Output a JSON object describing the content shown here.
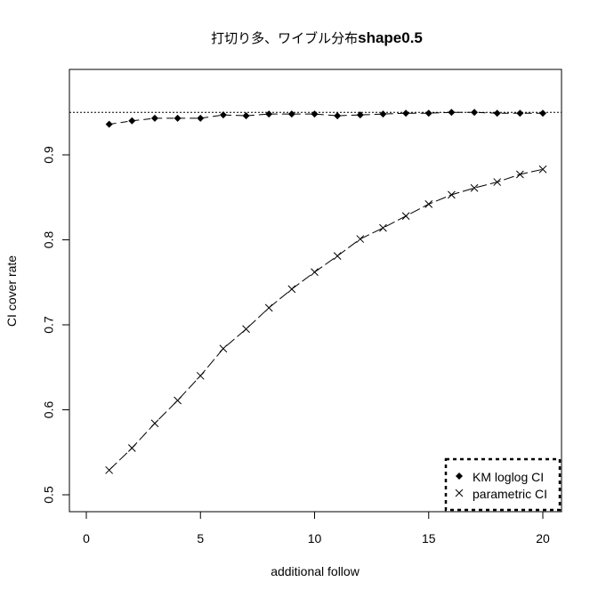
{
  "chart_data": {
    "type": "line",
    "title": "打切り多、ワイブル分布shape0.5",
    "title_parts": {
      "jp": "打切り多、ワイブル分布",
      "en": "shape0.5"
    },
    "xlabel": "additional follow",
    "ylabel": "CI cover rate",
    "xlim": [
      0,
      20
    ],
    "ylim": [
      0.48,
      0.99
    ],
    "x_ticks": [
      0,
      5,
      10,
      15,
      20
    ],
    "y_ticks": [
      0.5,
      0.6,
      0.7,
      0.8,
      0.9
    ],
    "x_tick_labels": [
      "0",
      "5",
      "10",
      "15",
      "20"
    ],
    "y_tick_labels": [
      "0.5",
      "0.6",
      "0.7",
      "0.8",
      "0.9"
    ],
    "grid": false,
    "reference_line": {
      "y": 0.95,
      "style": "dotted"
    },
    "legend_position": "bottomright",
    "x": [
      1,
      2,
      3,
      4,
      5,
      6,
      7,
      8,
      9,
      10,
      11,
      12,
      13,
      14,
      15,
      16,
      17,
      18,
      19,
      20
    ],
    "series": [
      {
        "name": "KM loglog CI",
        "marker": "diamond-filled",
        "line": "dashed",
        "values": [
          0.936,
          0.94,
          0.943,
          0.943,
          0.943,
          0.947,
          0.946,
          0.948,
          0.948,
          0.948,
          0.946,
          0.947,
          0.948,
          0.949,
          0.949,
          0.95,
          0.95,
          0.949,
          0.949,
          0.949
        ]
      },
      {
        "name": "parametric CI",
        "marker": "x",
        "line": "dashed",
        "values": [
          0.529,
          0.555,
          0.584,
          0.611,
          0.64,
          0.672,
          0.695,
          0.72,
          0.742,
          0.762,
          0.781,
          0.801,
          0.814,
          0.828,
          0.842,
          0.853,
          0.861,
          0.868,
          0.877,
          0.883
        ]
      }
    ]
  },
  "legend": {
    "items": [
      {
        "label": "KM loglog CI",
        "symbol": "◆"
      },
      {
        "label": "parametric CI",
        "symbol": "×"
      }
    ]
  }
}
